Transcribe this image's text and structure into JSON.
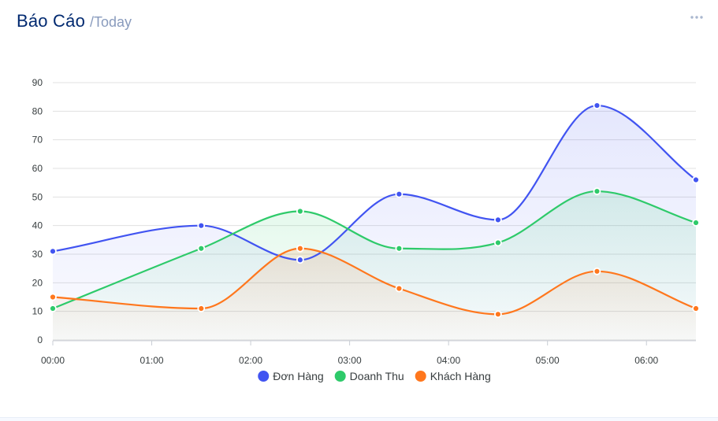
{
  "card": {
    "title": "Báo Cáo",
    "subtitle": "/Today",
    "menu_icon": "ellipsis-icon"
  },
  "colors": {
    "title": "#012970",
    "subtitle": "#899bbd",
    "grid": "#e0e0e0"
  },
  "chart_data": {
    "type": "area",
    "x": [
      0,
      1.5,
      2.5,
      3.5,
      4.5,
      5.5,
      6.5
    ],
    "xlim": [
      0,
      6.5
    ],
    "xticks": [
      "00:00",
      "01:00",
      "02:00",
      "03:00",
      "04:00",
      "05:00",
      "06:00"
    ],
    "ylim": [
      0,
      90
    ],
    "yticks": [
      0,
      10,
      20,
      30,
      40,
      50,
      60,
      70,
      80,
      90
    ],
    "grid": true,
    "legend": "bottom",
    "series": [
      {
        "name": "Đơn Hàng",
        "color": "#4154f1",
        "values": [
          31,
          40,
          28,
          51,
          42,
          82,
          56
        ]
      },
      {
        "name": "Doanh Thu",
        "color": "#2eca6a",
        "values": [
          11,
          32,
          45,
          32,
          34,
          52,
          41
        ]
      },
      {
        "name": "Khách Hàng",
        "color": "#ff771d",
        "values": [
          15,
          11,
          32,
          18,
          9,
          24,
          11
        ]
      }
    ]
  }
}
